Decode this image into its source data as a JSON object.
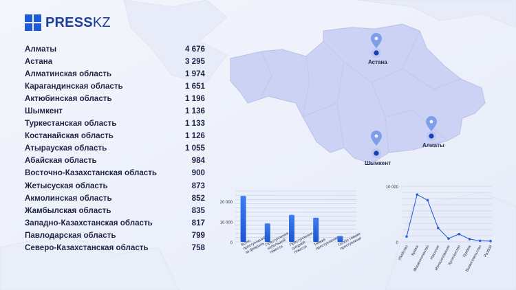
{
  "brand": {
    "name_bold": "PRESS",
    "name_thin": "KZ"
  },
  "regions": [
    {
      "name": "Алматы",
      "value": "4 676"
    },
    {
      "name": "Астана",
      "value": "3 295"
    },
    {
      "name": "Алматинская область",
      "value": "1 974"
    },
    {
      "name": "Карагандинская область",
      "value": "1 651"
    },
    {
      "name": "Актюбинская область",
      "value": "1 196"
    },
    {
      "name": "Шымкент",
      "value": "1 136"
    },
    {
      "name": "Туркестанская область",
      "value": "1 133"
    },
    {
      "name": "Костанайская область",
      "value": "1 126"
    },
    {
      "name": "Атырауская область",
      "value": "1 055"
    },
    {
      "name": "Абайская область",
      "value": "984"
    },
    {
      "name": "Восточно-Казахстанская область",
      "value": "900"
    },
    {
      "name": "Жетысуская область",
      "value": "873"
    },
    {
      "name": "Акмолинская область",
      "value": "852"
    },
    {
      "name": "Жамбылская область",
      "value": "835"
    },
    {
      "name": "Западно-Казахстанская область",
      "value": "817"
    },
    {
      "name": "Павлодарская область",
      "value": "799"
    },
    {
      "name": "Северо-Казахстанская область",
      "value": "758"
    }
  ],
  "map": {
    "cities": [
      {
        "name": "Астана"
      },
      {
        "name": "Алматы"
      },
      {
        "name": "Шымкент"
      }
    ]
  },
  "colors": {
    "accent": "#1f5bd6",
    "map_fill": "#cbd2f3",
    "text": "#1f2545"
  },
  "chart_data": [
    {
      "type": "bar",
      "title": "",
      "categories": [
        "Всего преступлений за февраль",
        "Преступления небольшой тяжести",
        "Преступления средней тяжести",
        "Тяжкие преступления",
        "Особо тяжкие преступления"
      ],
      "values": [
        22600,
        9100,
        13300,
        11900,
        2900
      ],
      "yticks": [
        "0",
        "10 000",
        "20 000"
      ],
      "ylim": [
        0,
        25000
      ],
      "grid": true
    },
    {
      "type": "line",
      "title": "",
      "categories": [
        "Убийство",
        "Кража",
        "Мошенничество",
        "Насилие",
        "Изнасилование",
        "Хулиганство",
        "Грабеж",
        "Вымогательство",
        "Разбой"
      ],
      "values": [
        950,
        8500,
        7500,
        2500,
        600,
        1400,
        500,
        200,
        150
      ],
      "yticks": [
        "0",
        "10 000"
      ],
      "ylim": [
        0,
        10000
      ],
      "grid": true
    }
  ]
}
